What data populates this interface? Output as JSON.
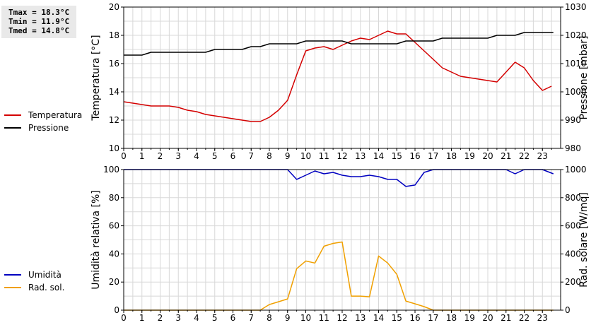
{
  "stats": {
    "tmax": "Tmax = 18.3°C",
    "tmin": "Tmin = 11.9°C",
    "tmed": "Tmed = 14.8°C"
  },
  "legend_top": [
    {
      "label": "Temperatura",
      "color": "#d40000"
    },
    {
      "label": "Pressione",
      "color": "#000000"
    }
  ],
  "legend_bottom": [
    {
      "label": "Umidità",
      "color": "#0000c0"
    },
    {
      "label": "Rad. sol.",
      "color": "#f0a000"
    }
  ],
  "chart_data": [
    {
      "type": "line",
      "xlim": [
        0,
        24
      ],
      "x_ticks": [
        "0",
        "1",
        "2",
        "3",
        "4",
        "5",
        "6",
        "7",
        "8",
        "9",
        "10",
        "11",
        "12",
        "13",
        "14",
        "15",
        "16",
        "17",
        "18",
        "19",
        "20",
        "21",
        "22",
        "23"
      ],
      "grid": true,
      "left_axis": {
        "label": "Temperatura [°C]",
        "ylim": [
          10,
          20
        ],
        "ticks": [
          10,
          12,
          14,
          16,
          18,
          20
        ]
      },
      "right_axis": {
        "label": "Pressione [mbar]",
        "ylim": [
          980,
          1030
        ],
        "ticks": [
          980,
          990,
          1000,
          1010,
          1020,
          1030
        ]
      },
      "series": [
        {
          "name": "Temperatura",
          "axis": "left",
          "color": "#d40000",
          "points": [
            [
              0,
              13.3
            ],
            [
              0.5,
              13.2
            ],
            [
              1,
              13.1
            ],
            [
              1.5,
              13.0
            ],
            [
              2,
              13.0
            ],
            [
              2.5,
              13.0
            ],
            [
              3,
              12.9
            ],
            [
              3.5,
              12.7
            ],
            [
              4,
              12.6
            ],
            [
              4.5,
              12.4
            ],
            [
              5,
              12.3
            ],
            [
              5.5,
              12.2
            ],
            [
              6,
              12.1
            ],
            [
              6.5,
              12.0
            ],
            [
              7,
              11.9
            ],
            [
              7.5,
              11.9
            ],
            [
              8,
              12.2
            ],
            [
              8.5,
              12.7
            ],
            [
              9,
              13.4
            ],
            [
              9.5,
              15.2
            ],
            [
              10,
              16.9
            ],
            [
              10.5,
              17.1
            ],
            [
              11,
              17.2
            ],
            [
              11.5,
              17.0
            ],
            [
              12,
              17.3
            ],
            [
              12.5,
              17.6
            ],
            [
              13,
              17.8
            ],
            [
              13.5,
              17.7
            ],
            [
              14,
              18.0
            ],
            [
              14.5,
              18.3
            ],
            [
              15,
              18.1
            ],
            [
              15.5,
              18.1
            ],
            [
              16,
              17.5
            ],
            [
              16.5,
              16.9
            ],
            [
              17,
              16.3
            ],
            [
              17.5,
              15.7
            ],
            [
              18,
              15.4
            ],
            [
              18.5,
              15.1
            ],
            [
              19,
              15.0
            ],
            [
              19.5,
              14.9
            ],
            [
              20,
              14.8
            ],
            [
              20.5,
              14.7
            ],
            [
              21,
              15.4
            ],
            [
              21.5,
              16.1
            ],
            [
              22,
              15.7
            ],
            [
              22.5,
              14.8
            ],
            [
              23,
              14.1
            ],
            [
              23.5,
              14.4
            ]
          ]
        },
        {
          "name": "Pressione",
          "axis": "right",
          "color": "#000000",
          "points": [
            [
              0,
              1013
            ],
            [
              1,
              1013
            ],
            [
              1.5,
              1014
            ],
            [
              2,
              1014
            ],
            [
              4.5,
              1014
            ],
            [
              5,
              1015
            ],
            [
              6.5,
              1015
            ],
            [
              7,
              1016
            ],
            [
              7.5,
              1016
            ],
            [
              8,
              1017
            ],
            [
              9.5,
              1017
            ],
            [
              10,
              1018
            ],
            [
              12,
              1018
            ],
            [
              12.5,
              1017
            ],
            [
              15,
              1017
            ],
            [
              15.5,
              1018
            ],
            [
              17,
              1018
            ],
            [
              17.5,
              1019
            ],
            [
              20,
              1019
            ],
            [
              20.5,
              1020
            ],
            [
              21.5,
              1020
            ],
            [
              22,
              1021
            ],
            [
              23.6,
              1021
            ]
          ]
        }
      ]
    },
    {
      "type": "line",
      "xlim": [
        0,
        24
      ],
      "x_ticks": [
        "0",
        "1",
        "2",
        "3",
        "4",
        "5",
        "6",
        "7",
        "8",
        "9",
        "10",
        "11",
        "12",
        "13",
        "14",
        "15",
        "16",
        "17",
        "18",
        "19",
        "20",
        "21",
        "22",
        "23"
      ],
      "grid": true,
      "left_axis": {
        "label": "Umidità relativa [%]",
        "ylim": [
          0,
          100
        ],
        "ticks": [
          0,
          20,
          40,
          60,
          80,
          100
        ]
      },
      "right_axis": {
        "label": "Rad. solare [W/mq]",
        "ylim": [
          0,
          1000
        ],
        "ticks": [
          0,
          200,
          400,
          600,
          800,
          1000
        ]
      },
      "series": [
        {
          "name": "Umidità",
          "axis": "left",
          "color": "#0000c0",
          "points": [
            [
              0,
              100
            ],
            [
              9,
              100
            ],
            [
              9.5,
              93
            ],
            [
              10,
              96
            ],
            [
              10.5,
              99
            ],
            [
              11,
              97
            ],
            [
              11.5,
              98
            ],
            [
              12,
              96
            ],
            [
              12.5,
              95
            ],
            [
              13,
              95
            ],
            [
              13.5,
              96
            ],
            [
              14,
              95
            ],
            [
              14.5,
              93
            ],
            [
              15,
              93
            ],
            [
              15.5,
              88
            ],
            [
              16,
              89
            ],
            [
              16.5,
              98
            ],
            [
              17,
              100
            ],
            [
              21,
              100
            ],
            [
              21.5,
              97
            ],
            [
              22,
              100
            ],
            [
              23,
              100
            ],
            [
              23.6,
              97
            ]
          ]
        },
        {
          "name": "Rad. sol.",
          "axis": "right",
          "color": "#f0a000",
          "points": [
            [
              0,
              0
            ],
            [
              7.5,
              0
            ],
            [
              8,
              40
            ],
            [
              8.5,
              60
            ],
            [
              9,
              80
            ],
            [
              9.5,
              295
            ],
            [
              10,
              350
            ],
            [
              10.5,
              335
            ],
            [
              11,
              455
            ],
            [
              11.5,
              475
            ],
            [
              12,
              485
            ],
            [
              12.5,
              100
            ],
            [
              13,
              100
            ],
            [
              13.5,
              95
            ],
            [
              14,
              385
            ],
            [
              14.5,
              335
            ],
            [
              15,
              255
            ],
            [
              15.5,
              65
            ],
            [
              16,
              45
            ],
            [
              16.5,
              25
            ],
            [
              17,
              0
            ],
            [
              23.6,
              0
            ]
          ]
        }
      ]
    }
  ]
}
